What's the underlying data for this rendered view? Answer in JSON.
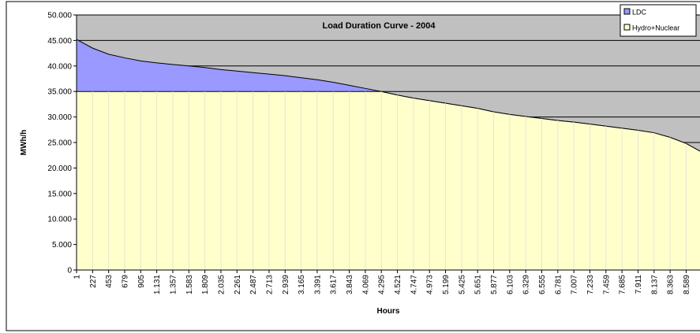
{
  "chart_data": {
    "type": "area",
    "title": "Load Duration Curve - 2004",
    "xlabel": "Hours",
    "ylabel": "MWh/h",
    "x": [
      1,
      227,
      453,
      679,
      905,
      1131,
      1357,
      1583,
      1809,
      2035,
      2261,
      2487,
      2713,
      2939,
      3165,
      3391,
      3617,
      3843,
      4069,
      4295,
      4521,
      4747,
      4973,
      5199,
      5425,
      5651,
      5877,
      6103,
      6329,
      6555,
      6781,
      7007,
      7233,
      7459,
      7685,
      7911,
      8137,
      8363,
      8589,
      8784
    ],
    "series": [
      {
        "name": "LDC",
        "color": "#9999ff",
        "values": [
          45200,
          43500,
          42300,
          41600,
          41000,
          40600,
          40300,
          40000,
          39700,
          39300,
          39000,
          38700,
          38400,
          38100,
          37700,
          37300,
          36800,
          36200,
          35600,
          35000,
          34300,
          33700,
          33200,
          32700,
          32200,
          31700,
          31000,
          30500,
          30100,
          29700,
          29300,
          29000,
          28600,
          28200,
          27800,
          27400,
          26900,
          26000,
          24800,
          23300
        ]
      },
      {
        "name": "Hydro+Nuclear",
        "color": "#ffffcc",
        "values": [
          35000,
          35000,
          35000,
          35000,
          35000,
          35000,
          35000,
          35000,
          35000,
          35000,
          35000,
          35000,
          35000,
          35000,
          35000,
          35000,
          35000,
          35000,
          35000,
          35000,
          34300,
          33700,
          33200,
          32700,
          32200,
          31700,
          31000,
          30500,
          30100,
          29700,
          29300,
          29000,
          28600,
          28200,
          27800,
          27400,
          26900,
          26000,
          24800,
          23300
        ]
      }
    ],
    "xlim": [
      1,
      8784
    ],
    "xticks": [
      1,
      227,
      453,
      679,
      905,
      {
        "value": 1131,
        "label": "1.131"
      },
      {
        "value": 1357,
        "label": "1.357"
      },
      {
        "value": 1583,
        "label": "1.583"
      },
      {
        "value": 1809,
        "label": "1.809"
      },
      {
        "value": 2035,
        "label": "2.035"
      },
      {
        "value": 2261,
        "label": "2.261"
      },
      {
        "value": 2487,
        "label": "2.487"
      },
      {
        "value": 2713,
        "label": "2.713"
      },
      {
        "value": 2939,
        "label": "2.939"
      },
      {
        "value": 3165,
        "label": "3.165"
      },
      {
        "value": 3391,
        "label": "3.391"
      },
      {
        "value": 3617,
        "label": "3.617"
      },
      {
        "value": 3843,
        "label": "3.843"
      },
      {
        "value": 4069,
        "label": "4.069"
      },
      {
        "value": 4295,
        "label": "4.295"
      },
      {
        "value": 4521,
        "label": "4.521"
      },
      {
        "value": 4747,
        "label": "4.747"
      },
      {
        "value": 4973,
        "label": "4.973"
      },
      {
        "value": 5199,
        "label": "5.199"
      },
      {
        "value": 5425,
        "label": "5.425"
      },
      {
        "value": 5651,
        "label": "5.651"
      },
      {
        "value": 5877,
        "label": "5.877"
      },
      {
        "value": 6103,
        "label": "6.103"
      },
      {
        "value": 6329,
        "label": "6.329"
      },
      {
        "value": 6555,
        "label": "6.555"
      },
      {
        "value": 6781,
        "label": "6.781"
      },
      {
        "value": 7007,
        "label": "7.007"
      },
      {
        "value": 7233,
        "label": "7.233"
      },
      {
        "value": 7459,
        "label": "7.459"
      },
      {
        "value": 7685,
        "label": "7.685"
      },
      {
        "value": 7911,
        "label": "7.911"
      },
      {
        "value": 8137,
        "label": "8.137"
      },
      {
        "value": 8363,
        "label": "8.363"
      },
      {
        "value": 8589,
        "label": "8.589"
      }
    ],
    "ylim": [
      0,
      50000
    ],
    "yticks": [
      0,
      {
        "value": 5000,
        "label": "5.000"
      },
      {
        "value": 10000,
        "label": "10.000"
      },
      {
        "value": 15000,
        "label": "15.000"
      },
      {
        "value": 20000,
        "label": "20.000"
      },
      {
        "value": 25000,
        "label": "25.000"
      },
      {
        "value": 30000,
        "label": "30.000"
      },
      {
        "value": 35000,
        "label": "35.000"
      },
      {
        "value": 40000,
        "label": "40.000"
      },
      {
        "value": 45000,
        "label": "45.000"
      },
      {
        "value": 50000,
        "label": "50.000"
      }
    ],
    "grid": true,
    "legend": "top-right",
    "background": "#c0c0c0"
  }
}
